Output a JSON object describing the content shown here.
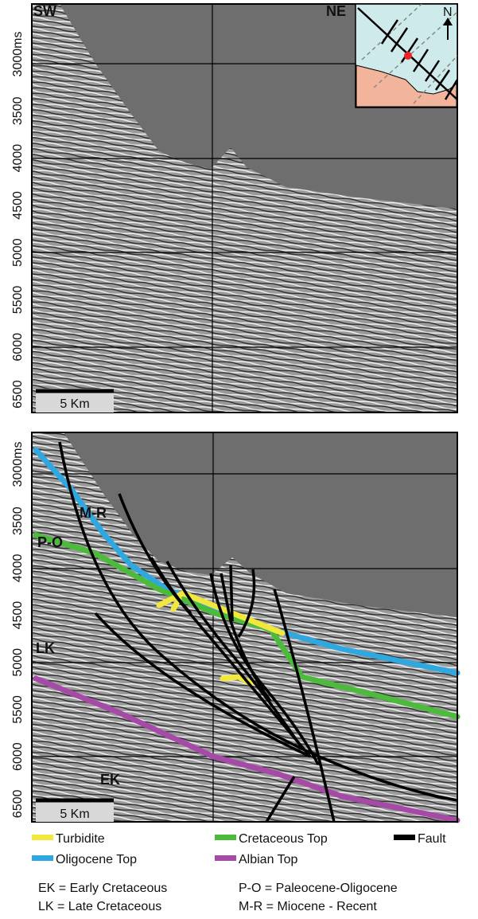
{
  "top_panel": {
    "left_label": "SW",
    "right_label": "NE",
    "yticks": [
      "3000ms",
      "3500",
      "4000",
      "4500",
      "5000",
      "5500",
      "6000",
      "6500"
    ],
    "scale_bar": "5 Km",
    "inset": {
      "north": "N"
    }
  },
  "bottom_panel": {
    "yticks": [
      "3000ms",
      "3500",
      "4000",
      "4500",
      "5000",
      "5500",
      "6000",
      "6500"
    ],
    "scale_bar": "5 Km",
    "units": [
      "M-R",
      "P-O",
      "LK",
      "EK"
    ]
  },
  "legend": [
    {
      "label": "Turbidite",
      "color": "#f2e83c"
    },
    {
      "label": "Cretaceous Top",
      "color": "#4cbb3c"
    },
    {
      "label": "Fault",
      "color": "#000000"
    },
    {
      "label": "Oligocene Top",
      "color": "#2fa7e0"
    },
    {
      "label": "Albian Top",
      "color": "#a64aa8"
    }
  ],
  "notes": [
    "EK = Early Cretaceous",
    "P-O = Paleocene-Oligocene",
    "LK = Late Cretaceous",
    "M-R = Miocene - Recent"
  ]
}
